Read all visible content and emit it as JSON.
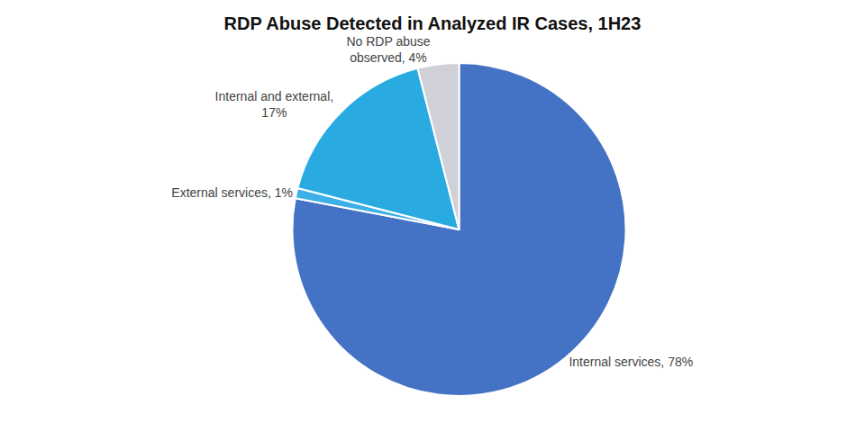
{
  "chart_data": {
    "type": "pie",
    "title": "RDP Abuse Detected in Analyzed IR Cases, 1H23",
    "categories": [
      "Internal services, 78%",
      "External services, 1%",
      "Internal and external,\n17%",
      "No RDP abuse\nobserved, 4%"
    ],
    "values": [
      78,
      1,
      17,
      4
    ],
    "colors": [
      "#4472C4",
      "#3DB0E8",
      "#29ABE2",
      "#D0D0D8"
    ]
  }
}
